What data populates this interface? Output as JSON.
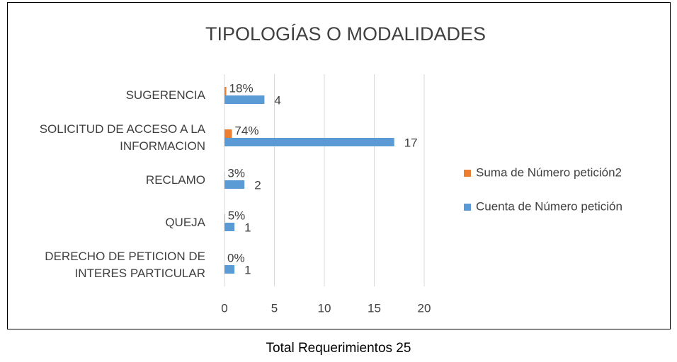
{
  "chart_data": {
    "type": "hbar",
    "title": "TIPOLOGÍAS O MODALIDADES",
    "categories": [
      "SUGERENCIA",
      "SOLICITUD DE ACCESO A LA INFORMACION",
      "RECLAMO",
      "QUEJA",
      "DERECHO DE PETICION DE INTERES PARTICULAR"
    ],
    "series": [
      {
        "name": "Suma de Número petición2",
        "color": "#ed7d31",
        "values": [
          0.18,
          0.74,
          0.03,
          0.05,
          0.0
        ],
        "value_labels": [
          "18%",
          "74%",
          "3%",
          "5%",
          "0%"
        ]
      },
      {
        "name": "Cuenta de Número petición",
        "color": "#5b9bd5",
        "values": [
          4,
          17,
          2,
          1,
          1
        ]
      }
    ],
    "xlim": [
      0,
      20
    ],
    "xticks": [
      0,
      5,
      10,
      15,
      20
    ],
    "grid": true,
    "legend": "right"
  },
  "caption": "Total Requerimientos 25"
}
